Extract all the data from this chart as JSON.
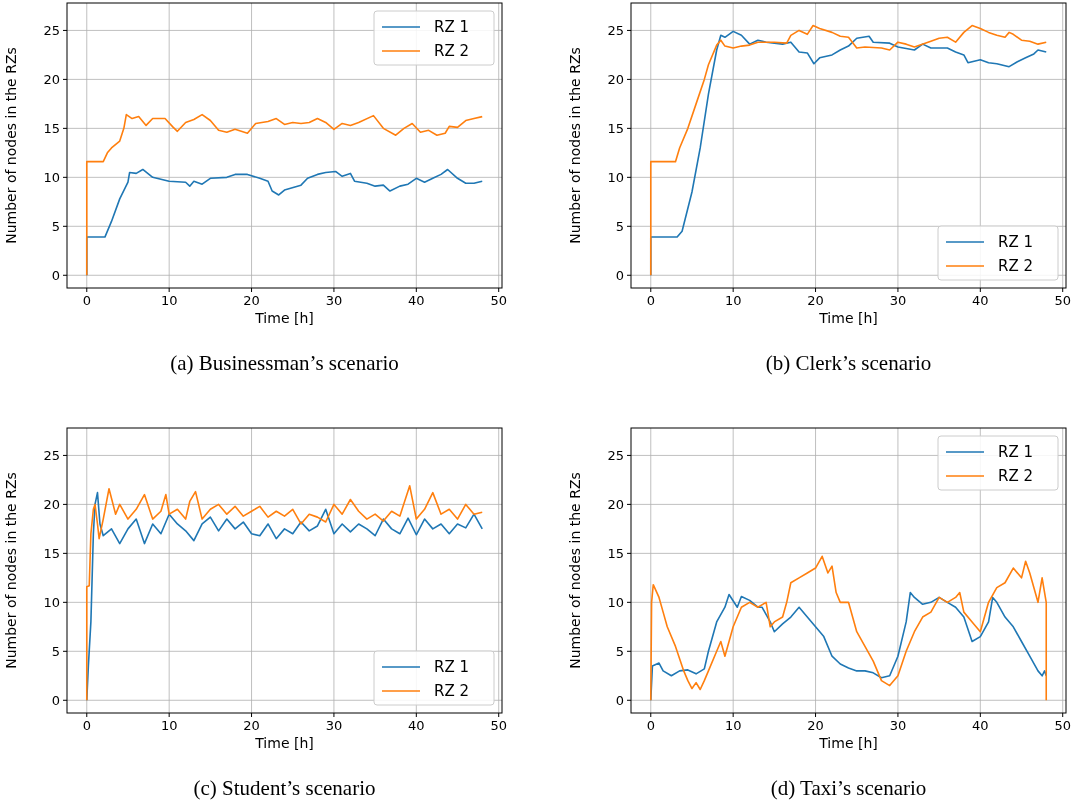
{
  "chart_data": [
    {
      "type": "line",
      "title": "(a) Businessman’s scenario",
      "xlabel": "Time [h]",
      "ylabel": "Number of nodes in the RZs",
      "xlim": [
        -2.4,
        50.4
      ],
      "ylim": [
        -1.3,
        27.8
      ],
      "xticks": [
        0,
        10,
        20,
        30,
        40,
        50
      ],
      "yticks": [
        0,
        5,
        10,
        15,
        20,
        25
      ],
      "grid": true,
      "legend": "top right",
      "series": [
        {
          "name": "RZ 1",
          "color": "#1f77b4",
          "x": [
            0,
            0,
            2.2,
            3,
            4,
            5,
            5.2,
            6,
            6.8,
            8,
            10,
            12,
            12.5,
            13,
            14,
            15,
            17,
            18,
            19.5,
            21,
            22,
            22.5,
            23.3,
            24,
            26,
            26.8,
            28,
            29,
            30.2,
            31,
            32,
            32.5,
            34,
            35,
            36,
            36.8,
            38,
            39,
            40,
            41,
            42,
            43,
            43.8,
            45,
            46,
            47,
            48
          ],
          "values": [
            0,
            3.9,
            3.9,
            5.5,
            7.8,
            9.5,
            10.5,
            10.4,
            10.8,
            10,
            9.6,
            9.5,
            9.1,
            9.6,
            9.3,
            9.9,
            10,
            10.3,
            10.3,
            9.9,
            9.6,
            8.6,
            8.2,
            8.7,
            9.2,
            9.9,
            10.3,
            10.5,
            10.6,
            10.1,
            10.4,
            9.6,
            9.4,
            9.1,
            9.2,
            8.6,
            9.1,
            9.3,
            9.9,
            9.5,
            9.9,
            10.3,
            10.8,
            9.9,
            9.4,
            9.4,
            9.6
          ]
        },
        {
          "name": "RZ 2",
          "color": "#ff7f0e",
          "x": [
            0,
            0,
            2,
            2.5,
            3,
            4,
            4.5,
            4.8,
            5.5,
            6.3,
            7.2,
            8,
            9.5,
            10.5,
            11,
            12,
            13,
            14,
            15,
            16,
            17,
            18,
            19.5,
            20.5,
            22,
            23,
            24,
            25,
            26,
            27,
            28,
            29,
            30,
            31,
            32,
            33,
            34.8,
            36,
            37.5,
            38.5,
            39.5,
            40.5,
            41.5,
            42.5,
            43.5,
            44,
            45,
            46,
            47,
            48
          ],
          "values": [
            0,
            11.6,
            11.6,
            12.5,
            13,
            13.7,
            15,
            16.4,
            16,
            16.2,
            15.3,
            16,
            16,
            15.1,
            14.7,
            15.6,
            15.9,
            16.4,
            15.8,
            14.8,
            14.6,
            14.9,
            14.5,
            15.5,
            15.7,
            16,
            15.4,
            15.6,
            15.5,
            15.6,
            16,
            15.6,
            14.9,
            15.5,
            15.3,
            15.6,
            16.3,
            15,
            14.3,
            15,
            15.5,
            14.6,
            14.8,
            14.3,
            14.5,
            15.2,
            15.1,
            15.8,
            16,
            16.2
          ]
        }
      ]
    },
    {
      "type": "line",
      "title": "(b) Clerk’s scenario",
      "xlabel": "Time [h]",
      "ylabel": "Number of nodes in the RZs",
      "xlim": [
        -2.4,
        50.4
      ],
      "ylim": [
        -1.3,
        27.8
      ],
      "xticks": [
        0,
        10,
        20,
        30,
        40,
        50
      ],
      "yticks": [
        0,
        5,
        10,
        15,
        20,
        25
      ],
      "grid": true,
      "legend": "bottom right",
      "series": [
        {
          "name": "RZ 1",
          "color": "#1f77b4",
          "x": [
            0,
            0,
            3.2,
            3.8,
            5,
            6,
            7,
            8,
            8.5,
            9,
            10,
            11,
            12,
            13,
            14,
            16,
            17,
            18,
            19,
            19.8,
            20.5,
            22,
            23,
            24,
            25,
            26.5,
            27,
            29,
            30,
            32,
            33,
            34,
            36,
            37,
            38,
            38.5,
            40,
            41,
            42,
            43.5,
            44.5,
            45.5,
            46.5,
            47,
            48
          ],
          "values": [
            0,
            3.9,
            3.9,
            4.5,
            8.5,
            13,
            18.5,
            23,
            24.5,
            24.3,
            24.9,
            24.5,
            23.6,
            24,
            23.8,
            23.6,
            23.8,
            22.8,
            22.7,
            21.6,
            22.2,
            22.5,
            23,
            23.4,
            24.2,
            24.4,
            23.8,
            23.7,
            23.3,
            23,
            23.6,
            23.2,
            23.2,
            22.8,
            22.5,
            21.7,
            22,
            21.7,
            21.6,
            21.3,
            21.8,
            22.2,
            22.6,
            23,
            22.8
          ]
        },
        {
          "name": "RZ 2",
          "color": "#ff7f0e",
          "x": [
            0,
            0,
            3,
            3.5,
            4.5,
            5.5,
            6.5,
            7,
            8,
            8.5,
            9,
            10,
            11,
            12,
            13,
            15,
            16.5,
            17,
            18,
            19,
            19.7,
            20.5,
            22,
            23,
            24,
            25,
            26,
            28,
            29,
            30,
            31,
            32,
            34,
            35,
            36,
            37,
            38,
            39,
            40,
            41,
            42,
            43,
            43.5,
            44,
            45,
            46,
            47,
            48
          ],
          "values": [
            0,
            11.6,
            11.6,
            13,
            15,
            17.5,
            20,
            21.5,
            23.5,
            24,
            23.4,
            23.2,
            23.4,
            23.5,
            23.8,
            23.8,
            23.7,
            24.5,
            25,
            24.6,
            25.5,
            25.2,
            24.8,
            24.4,
            24.3,
            23.2,
            23.3,
            23.2,
            23,
            23.8,
            23.6,
            23.3,
            23.9,
            24.2,
            24.3,
            23.8,
            24.8,
            25.5,
            25.2,
            24.8,
            24.5,
            24.3,
            24.8,
            24.6,
            24,
            23.9,
            23.6,
            23.8
          ]
        }
      ]
    },
    {
      "type": "line",
      "title": "(c) Student’s scenario",
      "xlabel": "Time [h]",
      "ylabel": "Number of nodes in the RZs",
      "xlim": [
        -2.4,
        50.4
      ],
      "ylim": [
        -1.3,
        27.8
      ],
      "xticks": [
        0,
        10,
        20,
        30,
        40,
        50
      ],
      "yticks": [
        0,
        5,
        10,
        15,
        20,
        25
      ],
      "grid": true,
      "legend": "bottom right",
      "series": [
        {
          "name": "RZ 1",
          "color": "#1f77b4",
          "x": [
            0,
            0.2,
            0.5,
            0.8,
            1,
            1.3,
            1.6,
            2,
            3,
            4,
            5,
            6,
            7,
            8,
            9,
            10,
            11,
            12,
            13,
            14,
            15,
            16,
            17,
            18,
            19,
            20,
            21,
            22,
            23,
            24,
            25,
            26,
            27,
            28,
            29,
            30,
            31,
            32,
            33,
            34,
            35,
            36,
            37,
            38,
            39,
            40,
            41,
            42,
            43,
            44,
            45,
            46,
            47,
            48
          ],
          "values": [
            0,
            3.6,
            8,
            17,
            20,
            21.2,
            18,
            16.8,
            17.5,
            16,
            17.5,
            18.5,
            16,
            18,
            17,
            19,
            18,
            17.3,
            16.3,
            18,
            18.7,
            17.3,
            18.5,
            17.5,
            18.2,
            17,
            16.8,
            18,
            16.5,
            17.5,
            17,
            18.2,
            17.3,
            17.8,
            19.5,
            17,
            18,
            17.2,
            18,
            17.5,
            16.8,
            18.5,
            17.5,
            17,
            18.6,
            16.9,
            18.5,
            17.5,
            18,
            17,
            18,
            17.6,
            19,
            17.5
          ]
        },
        {
          "name": "RZ 2",
          "color": "#ff7f0e",
          "x": [
            0,
            0,
            0.3,
            0.5,
            0.8,
            1,
            1.3,
            1.5,
            2,
            2.7,
            3.5,
            4,
            5,
            6,
            7,
            8,
            9,
            9.6,
            10,
            11,
            12,
            12.5,
            13.2,
            14,
            15,
            16,
            17,
            18,
            19,
            20,
            21,
            22,
            23,
            24,
            25,
            26,
            27,
            28,
            29,
            30,
            31,
            32,
            33,
            34,
            35,
            36,
            37,
            38,
            39.2,
            40,
            41,
            42,
            43,
            44,
            45,
            46,
            47,
            48
          ],
          "values": [
            0,
            11.6,
            11.7,
            17,
            19.5,
            20,
            18,
            16.5,
            18.5,
            21.6,
            19,
            20,
            18.5,
            19.5,
            21,
            18.5,
            19.3,
            21,
            19,
            19.5,
            18.5,
            20.3,
            21.3,
            18.5,
            19.5,
            20,
            19,
            19.8,
            18.8,
            19.3,
            19.8,
            18.7,
            19.3,
            18.8,
            19.5,
            18,
            19,
            18.7,
            18.2,
            20,
            19,
            20.5,
            19.3,
            18.5,
            19,
            18.3,
            19.3,
            18.8,
            21.9,
            18.5,
            19.5,
            21.2,
            19,
            19.5,
            18.5,
            20,
            19,
            19.2
          ]
        }
      ]
    },
    {
      "type": "line",
      "title": "(d) Taxi’s scenario",
      "xlabel": "Time [h]",
      "ylabel": "Number of nodes in the RZs",
      "xlim": [
        -2.4,
        50.4
      ],
      "ylim": [
        -1.3,
        27.8
      ],
      "xticks": [
        0,
        10,
        20,
        30,
        40,
        50
      ],
      "yticks": [
        0,
        5,
        10,
        15,
        20,
        25
      ],
      "grid": true,
      "legend": "top right",
      "series": [
        {
          "name": "RZ 1",
          "color": "#1f77b4",
          "x": [
            0,
            0.2,
            1,
            1.5,
            2.5,
            3.5,
            4.5,
            5.5,
            6.5,
            7,
            8,
            9,
            9.5,
            10.5,
            11,
            12,
            13,
            13.5,
            14.5,
            15,
            16,
            17,
            18,
            19,
            20,
            21,
            22,
            23,
            24,
            25,
            26,
            27,
            28,
            29,
            30,
            31,
            31.5,
            32,
            33,
            34,
            35,
            36,
            37,
            38,
            39,
            40,
            41,
            41.5,
            42,
            43,
            44,
            45,
            46,
            47,
            47.5,
            47.8,
            48
          ],
          "values": [
            0,
            3.5,
            3.8,
            3,
            2.5,
            3,
            3.1,
            2.7,
            3.2,
            5,
            8,
            9.5,
            10.8,
            9.5,
            10.6,
            10.2,
            9.5,
            9.5,
            8,
            7,
            7.8,
            8.5,
            9.5,
            8.5,
            7.5,
            6.5,
            4.5,
            3.7,
            3.3,
            3,
            3,
            2.8,
            2.3,
            2.5,
            4.5,
            8,
            11,
            10.5,
            9.8,
            10,
            10.5,
            10,
            9.5,
            8.5,
            6,
            6.5,
            8,
            10.5,
            10,
            8.5,
            7.5,
            6,
            4.5,
            3,
            2.5,
            3,
            2.5
          ]
        },
        {
          "name": "RZ 2",
          "color": "#ff7f0e",
          "x": [
            0,
            0.1,
            0.3,
            1,
            1.5,
            2,
            3,
            4,
            4.5,
            5,
            5.5,
            6,
            6.5,
            7,
            8,
            8.5,
            9,
            10,
            11,
            12,
            13,
            14,
            14.5,
            15,
            16,
            16.5,
            17,
            18,
            19,
            20,
            20.8,
            21.5,
            22,
            22.5,
            23,
            24,
            25,
            26,
            27,
            28,
            29,
            30,
            31,
            32,
            33,
            34,
            35,
            36,
            37,
            37.5,
            38,
            39,
            40,
            41,
            42,
            43,
            44,
            45,
            45.5,
            46,
            47,
            47.5,
            48,
            48
          ],
          "values": [
            0,
            10,
            11.8,
            10.5,
            9,
            7.5,
            5.5,
            3,
            2,
            1.2,
            1.8,
            1.1,
            2,
            3,
            5,
            6,
            4.5,
            7.5,
            9.5,
            10,
            9.5,
            10,
            7.5,
            8,
            8.5,
            10,
            12,
            12.5,
            13,
            13.5,
            14.7,
            13,
            13.7,
            11,
            10,
            10,
            7,
            5.5,
            4,
            2,
            1.5,
            2.5,
            5,
            7,
            8.5,
            9,
            10.5,
            10,
            10.5,
            11,
            9,
            8,
            7,
            10,
            11.5,
            12,
            13.5,
            12.5,
            14.2,
            13,
            10,
            12.5,
            10,
            0
          ]
        }
      ]
    }
  ]
}
